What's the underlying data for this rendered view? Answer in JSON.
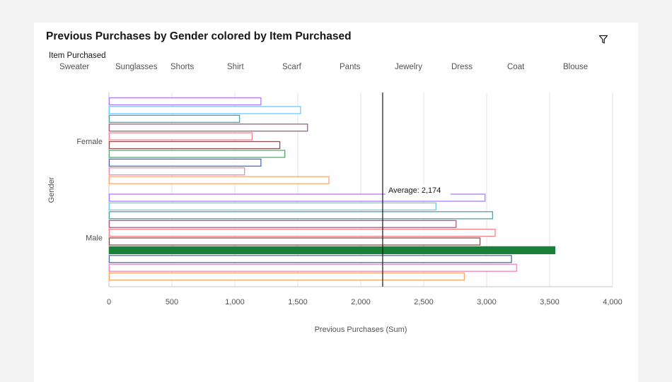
{
  "title": "Previous Purchases by Gender colored by Item Purchased",
  "legend": {
    "title": "Item Purchased",
    "items": [
      {
        "label": "Sweater",
        "color": "#8a3ffc"
      },
      {
        "label": "Sunglasses",
        "color": "#33b1ff"
      },
      {
        "label": "Shorts",
        "color": "#007d79"
      },
      {
        "label": "Shirt",
        "color": "#6f1f4a"
      },
      {
        "label": "Scarf",
        "color": "#fa4d56"
      },
      {
        "label": "Pants",
        "color": "#570408"
      },
      {
        "label": "Jewelry",
        "color": "#198038"
      },
      {
        "label": "Dress",
        "color": "#002d9c"
      },
      {
        "label": "Coat",
        "color": "#ee5396"
      },
      {
        "label": "Blouse",
        "color": "#ff832b"
      }
    ]
  },
  "icons": {
    "filter": "filter-icon"
  },
  "chart_data": {
    "type": "bar",
    "orientation": "horizontal",
    "categories": [
      "Female",
      "Male"
    ],
    "series_order_top_to_bottom": [
      "Sweater",
      "Sunglasses",
      "Shorts",
      "Shirt",
      "Scarf",
      "Pants",
      "Jewelry",
      "Dress",
      "Coat",
      "Blouse"
    ],
    "series": [
      {
        "name": "Sweater",
        "values": [
          1210,
          2990
        ]
      },
      {
        "name": "Sunglasses",
        "values": [
          1525,
          2600
        ]
      },
      {
        "name": "Shorts",
        "values": [
          1040,
          3050
        ]
      },
      {
        "name": "Shirt",
        "values": [
          1580,
          2760
        ]
      },
      {
        "name": "Scarf",
        "values": [
          1140,
          3070
        ]
      },
      {
        "name": "Pants",
        "values": [
          1360,
          2950
        ]
      },
      {
        "name": "Jewelry",
        "values": [
          1400,
          3545
        ]
      },
      {
        "name": "Dress",
        "values": [
          1210,
          3200
        ]
      },
      {
        "name": "Coat",
        "values": [
          1080,
          3240
        ]
      },
      {
        "name": "Blouse",
        "values": [
          1750,
          2825
        ]
      }
    ],
    "highlighted": {
      "series": "Jewelry",
      "category": "Male"
    },
    "reference_line": {
      "label": "Average: 2,174",
      "value": 2174
    },
    "xlabel": "Previous Purchases (Sum)",
    "ylabel": "Gender",
    "xlim": [
      0,
      4000
    ],
    "xticks": [
      0,
      500,
      1000,
      1500,
      2000,
      2500,
      3000,
      3500,
      4000
    ],
    "xtick_labels": [
      "0",
      "500",
      "1,000",
      "1,500",
      "2,000",
      "2,500",
      "3,000",
      "3,500",
      "4,000"
    ],
    "grid": "vertical"
  }
}
